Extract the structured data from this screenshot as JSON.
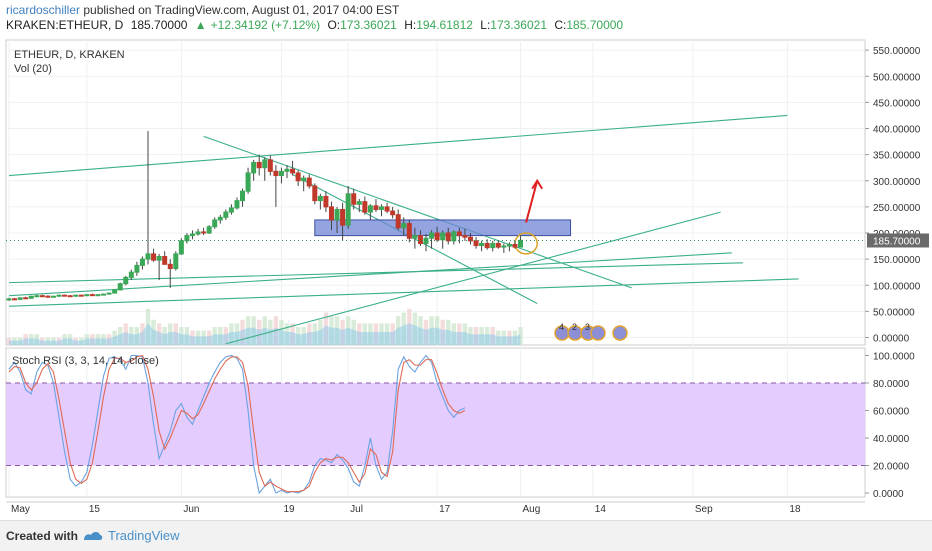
{
  "header": {
    "user": "ricardoschiller",
    "published_text": " published on TradingView.com, August 01, 2017 04:00 EST",
    "symbol": "KRAKEN:ETHEUR, D",
    "last": "185.70000",
    "change": "+12.34192 (+7.12%)",
    "open_label": "O:",
    "open": "173.36021",
    "high_label": "H:",
    "high": "194.61812",
    "low_label": "L:",
    "low": "173.36021",
    "close_label": "C:",
    "close": "185.70000"
  },
  "footer": {
    "created_with": "Created with",
    "brand": "TradingView"
  },
  "colors": {
    "up": "#3aa857",
    "down": "#c0392b",
    "trend": "#3aaf8a",
    "box": "#6f86d6",
    "rsi_k": "#6aa3e0",
    "rsi_d": "#e06a55",
    "rsi_band": "#e5ccff",
    "price_tag": "#6a6a6a"
  },
  "chart_data": [
    {
      "type": "candlestick",
      "title": "ETHEUR, D, KRAKEN",
      "indicator_label": "Vol (20)",
      "ylim": [
        -10,
        560
      ],
      "y_ticks": [
        "0.00000",
        "50.00000",
        "100.00000",
        "150.00000",
        "200.00000",
        "250.00000",
        "300.00000",
        "350.00000",
        "400.00000",
        "450.00000",
        "500.00000",
        "550.00000"
      ],
      "y_tick_values": [
        0,
        50,
        100,
        150,
        200,
        250,
        300,
        350,
        400,
        450,
        500,
        550
      ],
      "current_price": 185.7,
      "current_price_label": "185.70000",
      "x_ticks": [
        "May",
        "15",
        "Jun",
        "19",
        "Jul",
        "17",
        "Aug",
        "14",
        "Sep",
        "18"
      ],
      "x_tick_days": [
        0,
        14,
        31,
        49,
        61,
        77,
        92,
        105,
        123,
        140
      ],
      "candles_note": "approximate daily OHLC, day 0 = May 1",
      "candles": [
        [
          0,
          72,
          76,
          70,
          74
        ],
        [
          1,
          74,
          76,
          72,
          73
        ],
        [
          2,
          73,
          77,
          72,
          76
        ],
        [
          3,
          76,
          78,
          74,
          75
        ],
        [
          4,
          75,
          80,
          74,
          79
        ],
        [
          5,
          79,
          82,
          77,
          80
        ],
        [
          6,
          80,
          82,
          78,
          79
        ],
        [
          7,
          79,
          81,
          77,
          78
        ],
        [
          8,
          78,
          80,
          77,
          79
        ],
        [
          9,
          79,
          82,
          78,
          81
        ],
        [
          10,
          81,
          82,
          79,
          80
        ],
        [
          11,
          80,
          81,
          78,
          79
        ],
        [
          12,
          79,
          82,
          78,
          81
        ],
        [
          13,
          81,
          82,
          79,
          80
        ],
        [
          14,
          80,
          83,
          79,
          82
        ],
        [
          15,
          82,
          84,
          80,
          81
        ],
        [
          16,
          81,
          83,
          79,
          82
        ],
        [
          17,
          82,
          84,
          81,
          83
        ],
        [
          18,
          83,
          86,
          82,
          85
        ],
        [
          19,
          85,
          92,
          84,
          91
        ],
        [
          20,
          91,
          105,
          90,
          103
        ],
        [
          21,
          103,
          118,
          100,
          115
        ],
        [
          22,
          115,
          130,
          110,
          125
        ],
        [
          23,
          125,
          145,
          118,
          138
        ],
        [
          24,
          138,
          155,
          130,
          150
        ],
        [
          25,
          150,
          395,
          140,
          160
        ],
        [
          26,
          160,
          170,
          145,
          148
        ],
        [
          27,
          148,
          160,
          110,
          155
        ],
        [
          28,
          155,
          165,
          145,
          140
        ],
        [
          29,
          140,
          150,
          95,
          132
        ],
        [
          30,
          132,
          165,
          128,
          160
        ],
        [
          31,
          160,
          190,
          158,
          185
        ],
        [
          32,
          185,
          200,
          180,
          195
        ],
        [
          33,
          195,
          205,
          188,
          198
        ],
        [
          34,
          198,
          208,
          195,
          202
        ],
        [
          35,
          202,
          210,
          196,
          200
        ],
        [
          36,
          200,
          215,
          198,
          212
        ],
        [
          37,
          212,
          230,
          208,
          225
        ],
        [
          38,
          225,
          235,
          218,
          230
        ],
        [
          39,
          230,
          245,
          225,
          240
        ],
        [
          40,
          240,
          255,
          235,
          248
        ],
        [
          41,
          248,
          268,
          245,
          262
        ],
        [
          42,
          262,
          285,
          250,
          280
        ],
        [
          43,
          280,
          325,
          275,
          315
        ],
        [
          44,
          315,
          340,
          300,
          335
        ],
        [
          45,
          335,
          350,
          310,
          325
        ],
        [
          46,
          325,
          345,
          300,
          340
        ],
        [
          47,
          340,
          348,
          310,
          318
        ],
        [
          48,
          318,
          330,
          250,
          310
        ],
        [
          49,
          310,
          325,
          295,
          318
        ],
        [
          50,
          318,
          330,
          305,
          322
        ],
        [
          51,
          322,
          338,
          310,
          315
        ],
        [
          52,
          315,
          320,
          290,
          300
        ],
        [
          53,
          300,
          310,
          280,
          305
        ],
        [
          54,
          305,
          312,
          285,
          290
        ],
        [
          55,
          290,
          295,
          255,
          262
        ],
        [
          56,
          262,
          275,
          245,
          270
        ],
        [
          57,
          270,
          280,
          240,
          250
        ],
        [
          58,
          250,
          260,
          205,
          225
        ],
        [
          59,
          225,
          250,
          200,
          245
        ],
        [
          60,
          245,
          258,
          185,
          215
        ],
        [
          61,
          215,
          290,
          208,
          275
        ],
        [
          62,
          275,
          285,
          245,
          255
        ],
        [
          63,
          255,
          265,
          240,
          260
        ],
        [
          64,
          260,
          270,
          235,
          240
        ],
        [
          65,
          240,
          255,
          225,
          252
        ],
        [
          66,
          252,
          265,
          240,
          245
        ],
        [
          67,
          245,
          255,
          232,
          250
        ],
        [
          68,
          250,
          258,
          238,
          242
        ],
        [
          69,
          242,
          250,
          228,
          235
        ],
        [
          70,
          235,
          245,
          205,
          210
        ],
        [
          71,
          210,
          230,
          195,
          218
        ],
        [
          72,
          218,
          225,
          182,
          190
        ],
        [
          73,
          190,
          210,
          170,
          195
        ],
        [
          74,
          195,
          205,
          175,
          180
        ],
        [
          75,
          180,
          198,
          165,
          190
        ],
        [
          76,
          190,
          205,
          170,
          200
        ],
        [
          77,
          200,
          212,
          183,
          187
        ],
        [
          78,
          187,
          205,
          170,
          200
        ],
        [
          79,
          200,
          210,
          178,
          185
        ],
        [
          80,
          185,
          205,
          178,
          202
        ],
        [
          81,
          202,
          210,
          180,
          195
        ],
        [
          82,
          195,
          208,
          185,
          192
        ],
        [
          83,
          192,
          200,
          178,
          185
        ],
        [
          84,
          185,
          192,
          170,
          176
        ],
        [
          85,
          176,
          185,
          165,
          180
        ],
        [
          86,
          180,
          188,
          168,
          172
        ],
        [
          87,
          172,
          185,
          165,
          180
        ],
        [
          88,
          180,
          186,
          170,
          173
        ],
        [
          89,
          173,
          180,
          162,
          175
        ],
        [
          90,
          175,
          182,
          165,
          178
        ],
        [
          91,
          178,
          185,
          170,
          173
        ],
        [
          92,
          173,
          195,
          173,
          186
        ]
      ],
      "annotations": [
        {
          "type": "trendline",
          "from": [
            0,
            105
          ],
          "to": [
            132,
            143
          ]
        },
        {
          "type": "trendline",
          "from": [
            0,
            60
          ],
          "to": [
            142,
            112
          ]
        },
        {
          "type": "trendline",
          "from": [
            0,
            80
          ],
          "to": [
            130,
            162
          ]
        },
        {
          "type": "trendline",
          "from": [
            0,
            310
          ],
          "to": [
            140,
            425
          ]
        },
        {
          "type": "trendline",
          "from": [
            35,
            385
          ],
          "to": [
            112,
            95
          ]
        },
        {
          "type": "trendline",
          "from": [
            51,
            312
          ],
          "to": [
            95,
            65
          ]
        },
        {
          "type": "trendline",
          "from": [
            39,
            -12
          ],
          "to": [
            128,
            240
          ]
        },
        {
          "type": "rectangle",
          "from": [
            55,
            195
          ],
          "to": [
            101,
            225
          ]
        },
        {
          "type": "ellipse",
          "center": [
            93,
            180
          ],
          "rx": 2,
          "ry": 20
        },
        {
          "type": "arrow",
          "from": [
            93,
            220
          ],
          "to": [
            95,
            300
          ]
        }
      ],
      "volume_note": "volume overlay, relative heights",
      "volume_relative": [
        2,
        2,
        2,
        3,
        3,
        3,
        2,
        2,
        2,
        2,
        3,
        3,
        2,
        2,
        3,
        3,
        3,
        3,
        3,
        4,
        5,
        6,
        5,
        5,
        6,
        10,
        7,
        6,
        5,
        6,
        6,
        5,
        5,
        4,
        4,
        4,
        4,
        5,
        5,
        5,
        6,
        6,
        7,
        8,
        8,
        7,
        8,
        7,
        8,
        7,
        6,
        6,
        5,
        5,
        6,
        6,
        7,
        9,
        8,
        8,
        7,
        8,
        7,
        6,
        6,
        6,
        6,
        6,
        6,
        6,
        8,
        9,
        10,
        9,
        8,
        7,
        8,
        8,
        7,
        7,
        6,
        6,
        6,
        5,
        5,
        5,
        5,
        5,
        4,
        4,
        4,
        4,
        5
      ],
      "event_markers": [
        "4",
        "2",
        "3"
      ]
    },
    {
      "type": "line",
      "title": "Stoch RSI (3, 3, 14, 14, close)",
      "ylim": [
        -5,
        105
      ],
      "y_ticks": [
        "0.0000",
        "20.0000",
        "40.0000",
        "60.0000",
        "80.0000",
        "100.0000"
      ],
      "y_tick_values": [
        0,
        20,
        40,
        60,
        80,
        100
      ],
      "band": [
        20,
        80
      ],
      "x_ticks": [
        "May",
        "15",
        "Jun",
        "19",
        "Jul",
        "17",
        "Aug",
        "14",
        "Sep",
        "18"
      ],
      "x_tick_days": [
        0,
        14,
        31,
        49,
        61,
        77,
        92,
        105,
        123,
        140
      ],
      "series": [
        {
          "name": "K",
          "values": [
            90,
            95,
            88,
            75,
            72,
            88,
            95,
            93,
            80,
            55,
            30,
            10,
            5,
            8,
            15,
            35,
            60,
            85,
            98,
            99,
            97,
            90,
            100,
            100,
            99,
            80,
            50,
            25,
            35,
            45,
            60,
            65,
            55,
            50,
            60,
            70,
            80,
            88,
            95,
            99,
            100,
            98,
            90,
            60,
            20,
            0,
            5,
            10,
            0,
            2,
            0,
            1,
            0,
            2,
            8,
            20,
            25,
            24,
            22,
            28,
            24,
            18,
            8,
            5,
            20,
            40,
            20,
            10,
            15,
            45,
            90,
            99,
            92,
            88,
            95,
            100,
            95,
            80,
            70,
            60,
            55,
            60,
            62
          ]
        },
        {
          "name": "D",
          "values": [
            88,
            92,
            91,
            80,
            75,
            80,
            90,
            94,
            88,
            68,
            45,
            22,
            10,
            7,
            10,
            22,
            45,
            70,
            90,
            98,
            98,
            95,
            96,
            99,
            100,
            90,
            70,
            45,
            32,
            40,
            50,
            60,
            58,
            54,
            57,
            65,
            74,
            83,
            90,
            96,
            99,
            99,
            95,
            78,
            45,
            15,
            5,
            8,
            5,
            3,
            1,
            1,
            1,
            2,
            5,
            15,
            22,
            25,
            24,
            26,
            26,
            22,
            15,
            8,
            14,
            32,
            28,
            15,
            12,
            30,
            75,
            95,
            97,
            93,
            93,
            97,
            97,
            87,
            75,
            65,
            60,
            58,
            60
          ]
        }
      ]
    }
  ]
}
